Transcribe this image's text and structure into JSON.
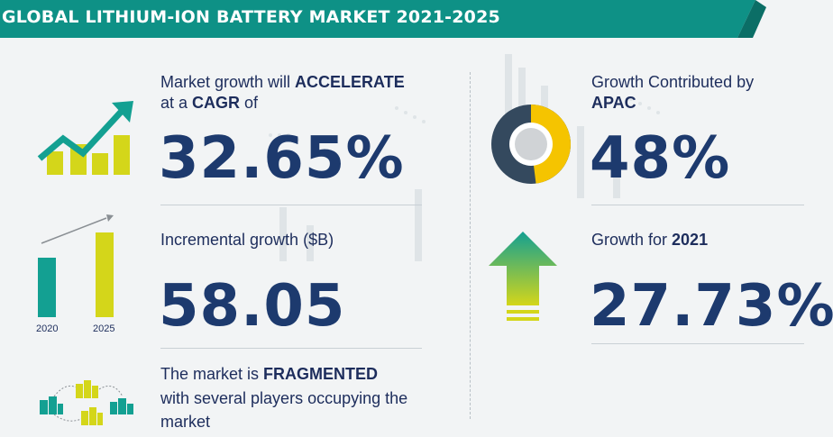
{
  "header": {
    "title": "GLOBAL LITHIUM-ION BATTERY MARKET 2021-2025"
  },
  "cagr": {
    "line1_prefix": "Market growth will ",
    "line1_bold": "ACCELERATE",
    "line2_prefix": "at a ",
    "line2_bold": "CAGR",
    "line2_suffix": " of",
    "value": "32.65%"
  },
  "incremental": {
    "label": "Incremental growth ($B)",
    "value": "58.05",
    "year_start": "2020",
    "year_end": "2025"
  },
  "fragmented": {
    "line1_prefix": "The market is ",
    "line1_bold": "FRAGMENTED",
    "line2": "with several players occupying the",
    "line3": "market"
  },
  "apac": {
    "line1": "Growth Contributed by",
    "line2_bold": "APAC",
    "value": "48%",
    "share": 0.48
  },
  "growth2021": {
    "prefix": "Growth for ",
    "year_bold": "2021",
    "value": "27.73%"
  },
  "colors": {
    "banner": "#0e9186",
    "banner_dark": "#0b6e66",
    "teal": "#13a092",
    "lime": "#d4d61a",
    "yellow": "#f5c400",
    "navy": "#1d3a6e",
    "slate": "#34495e"
  },
  "icons": {
    "cagr": "growth-trend-icon",
    "incremental": "bar-comparison-icon",
    "fragmented": "network-buildings-icon",
    "apac": "donut-share-icon",
    "growth2021": "up-arrow-icon"
  }
}
